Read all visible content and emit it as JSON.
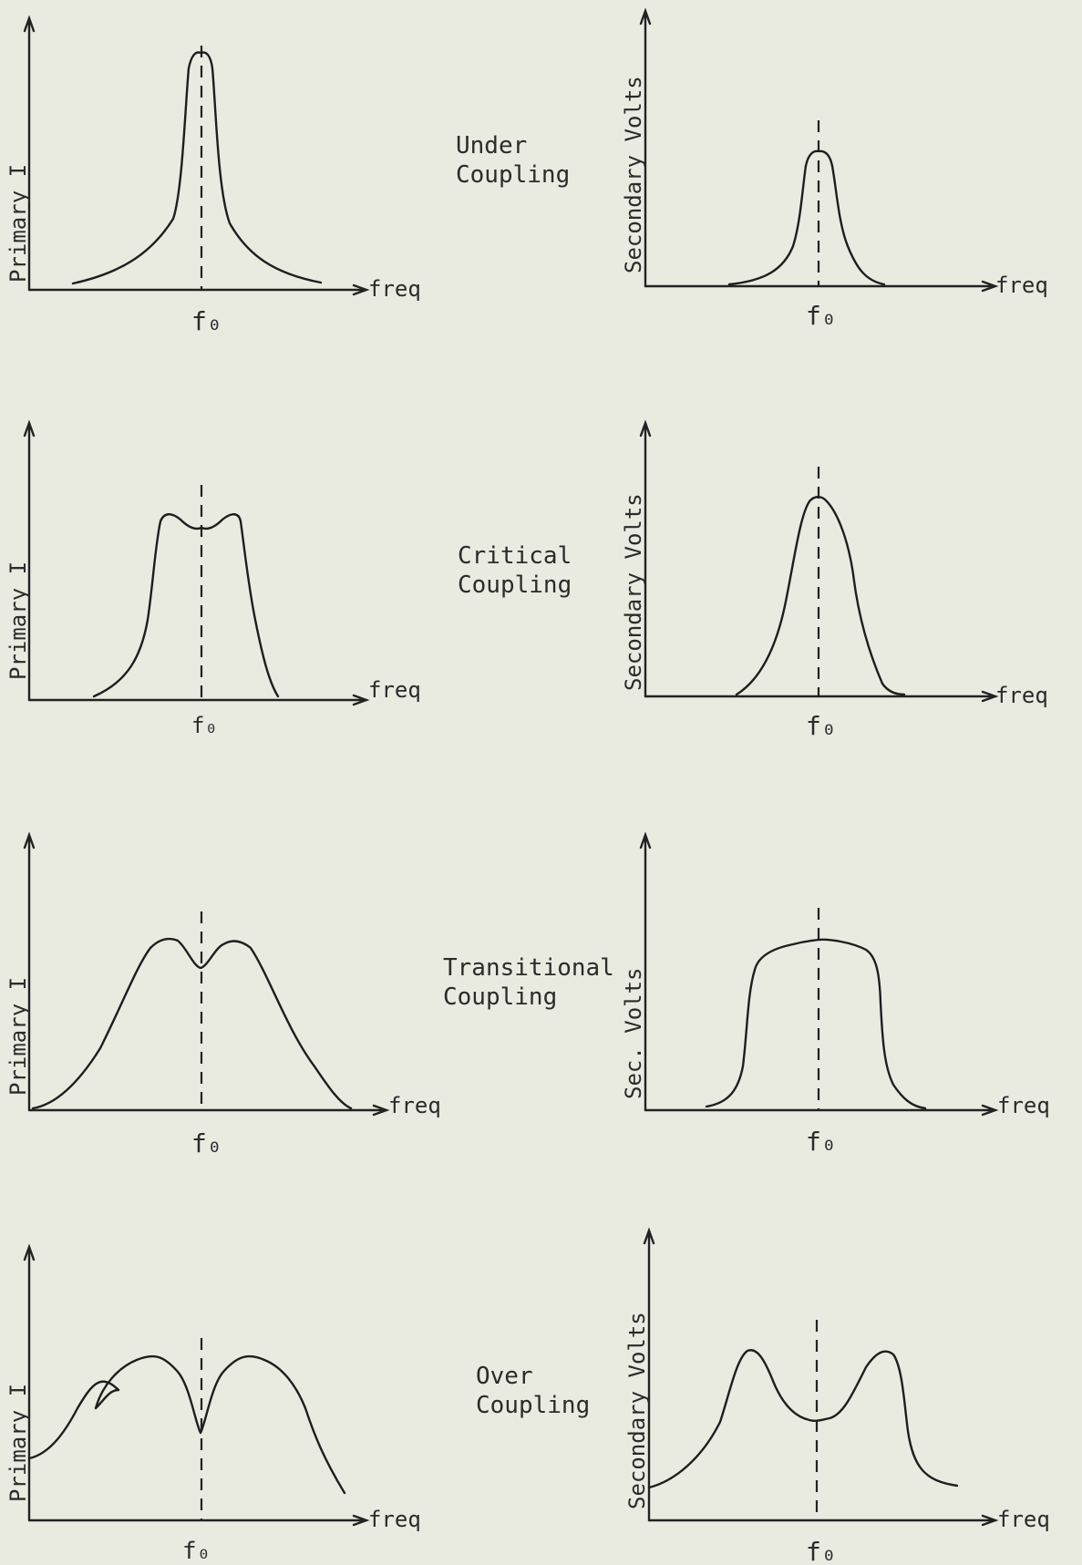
{
  "rows": [
    {
      "label_lines": [
        "Under",
        "Coupling"
      ],
      "primary": {
        "ylabel": "Primary I",
        "xlabel": "freq",
        "center_label": "f₀"
      },
      "secondary": {
        "ylabel": "Secondary Volts",
        "xlabel": "freq",
        "center_label": "f₀"
      }
    },
    {
      "label_lines": [
        "Critical",
        "Coupling"
      ],
      "primary": {
        "ylabel": "Primary I",
        "xlabel": "freq",
        "center_label": "f₀"
      },
      "secondary": {
        "ylabel": "Secondary Volts",
        "xlabel": "freq",
        "center_label": "f₀"
      }
    },
    {
      "label_lines": [
        "Transitional",
        "Coupling"
      ],
      "primary": {
        "ylabel": "Primary I",
        "xlabel": "freq",
        "center_label": "f₀"
      },
      "secondary": {
        "ylabel": "Sec.   Volts",
        "xlabel": "freq",
        "center_label": "f₀"
      }
    },
    {
      "label_lines": [
        "Over",
        "Coupling"
      ],
      "primary": {
        "ylabel": "Primary I",
        "xlabel": "freq",
        "center_label": "f₀"
      },
      "secondary": {
        "ylabel": "Secondary Volts",
        "xlabel": "freq",
        "center_label": "f₀"
      }
    }
  ]
}
